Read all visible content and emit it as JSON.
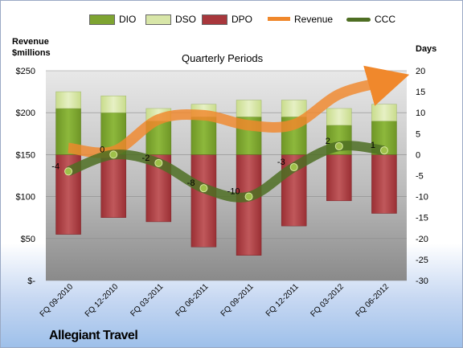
{
  "chart_data": {
    "type": "bar",
    "title": "Allegiant Travel",
    "subtitle": "Quarterly Periods",
    "ylabel_left": "Revenue\n$millions",
    "ylabel_right": "Days",
    "categories": [
      "FQ 09-2010",
      "FQ 12-2010",
      "FQ 03-2011",
      "FQ 06-2011",
      "FQ 09-2011",
      "FQ 12-2011",
      "FQ 03-2012",
      "FQ 06-2012"
    ],
    "y_left": {
      "min": 0,
      "max": 250,
      "ticks": [
        "$-",
        "$50",
        "$100",
        "$150",
        "$200",
        "$250"
      ]
    },
    "y_right": {
      "min": -30,
      "max": 20,
      "ticks": [
        "-30",
        "-25",
        "-20",
        "-15",
        "-10",
        "-5",
        "0",
        "5",
        "10",
        "15",
        "20"
      ]
    },
    "series": [
      {
        "name": "DIO",
        "axis": "days",
        "color": "#7ea431",
        "values": [
          11,
          10,
          8,
          9,
          9,
          9,
          7,
          8
        ]
      },
      {
        "name": "DSO",
        "axis": "days",
        "color": "#d8e6a8",
        "values": [
          4,
          4,
          3,
          3,
          4,
          4,
          4,
          4
        ]
      },
      {
        "name": "DPO",
        "axis": "days",
        "color": "#a8373c",
        "values": [
          -19,
          -15,
          -16,
          -22,
          -24,
          -17,
          -11,
          -14
        ]
      },
      {
        "name": "Revenue",
        "axis": "revenue",
        "color": "#f0882c",
        "values": [
          158,
          154,
          192,
          197,
          185,
          186,
          222,
          237
        ]
      },
      {
        "name": "CCC",
        "axis": "days",
        "color": "#4e6e23",
        "values": [
          -4,
          0,
          -2,
          -8,
          -10,
          -3,
          2,
          1
        ]
      }
    ],
    "ccc_labels": [
      "-4",
      "0",
      "-2",
      "-8",
      "-10",
      "-3",
      "2",
      "1"
    ],
    "grid": true,
    "legend_position": "top"
  }
}
